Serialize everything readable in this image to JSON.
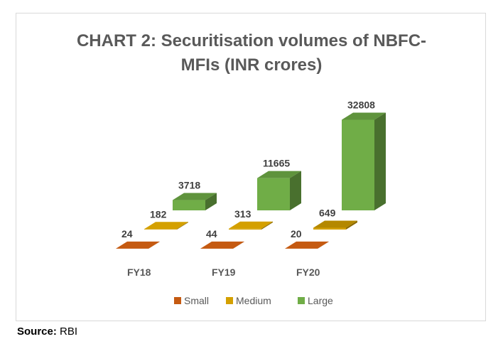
{
  "chart_data": {
    "type": "bar",
    "title": "CHART 2: Securitisation volumes of NBFC-MFIs (INR crores)",
    "title_lines": [
      "CHART 2: Securitisation volumes of NBFC-",
      "MFIs (INR crores)"
    ],
    "categories": [
      "FY18",
      "FY19",
      "FY20"
    ],
    "series": [
      {
        "name": "Small",
        "values": [
          24,
          44,
          20
        ],
        "color": "#c55a11",
        "value_labels": [
          "24",
          "44",
          "20"
        ]
      },
      {
        "name": "Medium",
        "values": [
          182,
          313,
          649
        ],
        "color": "#d4a000",
        "value_labels": [
          "182",
          "313",
          "649"
        ]
      },
      {
        "name": "Large",
        "values": [
          3718,
          11665,
          32808
        ],
        "color": "#70ad47",
        "value_labels": [
          "3718",
          "11665",
          "32808"
        ]
      }
    ],
    "legend_position": "bottom",
    "ylim": [
      0,
      35000
    ],
    "grid": false,
    "style": "3d-column"
  },
  "source": {
    "label": "Source:",
    "text": "RBI"
  }
}
